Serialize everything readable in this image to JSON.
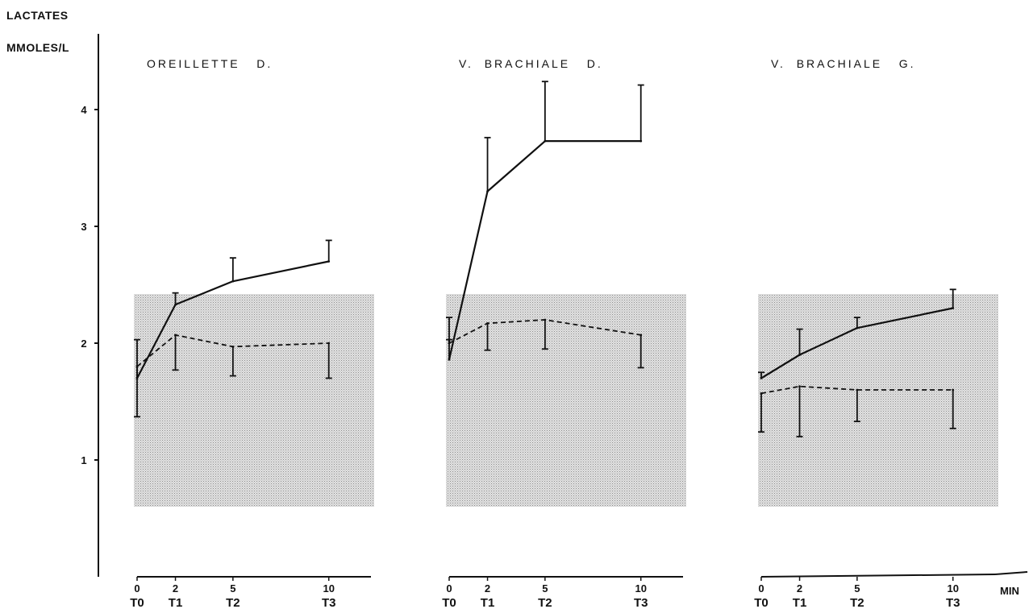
{
  "chart_data": {
    "type": "line",
    "y_axis_title": "LACTATES",
    "y_unit": "MMOLES/L",
    "x_unit": "MIN",
    "y_ticks": [
      "1",
      "2",
      "3",
      "4"
    ],
    "ylim": [
      0,
      4.3
    ],
    "x_ticks": [
      0,
      2,
      5,
      10
    ],
    "x_tick_time_labels": [
      "T0",
      "T1",
      "T2",
      "T3"
    ],
    "shaded_band": [
      0.6,
      2.42
    ],
    "grid": false,
    "legend": "none",
    "panels": [
      {
        "title": "OREILLETTE   D.",
        "series": [
          {
            "style": "solid",
            "x": [
              0,
              2,
              5,
              10
            ],
            "y": [
              1.7,
              2.33,
              2.53,
              2.7
            ],
            "error": [
              0.33,
              0.1,
              0.2,
              0.18
            ],
            "error_direction": "up"
          },
          {
            "style": "dashed",
            "x": [
              0,
              2,
              5,
              10
            ],
            "y": [
              1.8,
              2.07,
              1.97,
              2.0
            ],
            "error": [
              0.43,
              0.3,
              0.25,
              0.3
            ],
            "error_direction": "down"
          }
        ]
      },
      {
        "title": "V.  BRACHIALE   D.",
        "series": [
          {
            "style": "solid",
            "x": [
              0,
              2,
              5,
              10
            ],
            "y": [
              1.86,
              3.3,
              3.73,
              3.73
            ],
            "error": [
              0.17,
              0.46,
              0.51,
              0.48
            ],
            "error_direction": "up"
          },
          {
            "style": "dashed",
            "x": [
              0,
              2,
              5,
              10
            ],
            "y": [
              2.0,
              2.17,
              2.2,
              2.07
            ],
            "error": [
              0.22,
              0.23,
              0.25,
              0.28
            ],
            "error_direction": "mixed"
          }
        ]
      },
      {
        "title": "V.  BRACHIALE   G.",
        "series": [
          {
            "style": "solid",
            "x": [
              0,
              2,
              5,
              10
            ],
            "y": [
              1.7,
              1.9,
              2.13,
              2.3
            ],
            "error": [
              0.05,
              0.22,
              0.09,
              0.16
            ],
            "error_direction": "up"
          },
          {
            "style": "dashed",
            "x": [
              0,
              2,
              5,
              10
            ],
            "y": [
              1.57,
              1.63,
              1.6,
              1.6
            ],
            "error": [
              0.33,
              0.43,
              0.27,
              0.33
            ],
            "error_direction": "down"
          }
        ]
      }
    ]
  }
}
